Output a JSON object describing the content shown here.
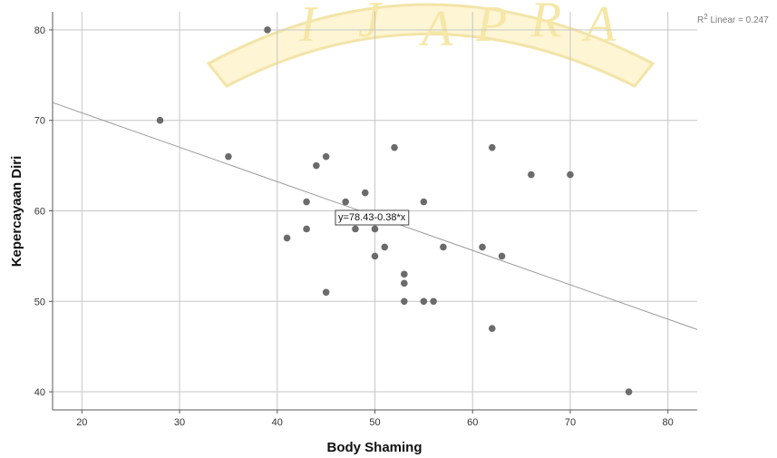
{
  "chart_data": {
    "type": "scatter",
    "xlabel": "Body Shaming",
    "ylabel": "Kepercayaan Diri",
    "xlim": [
      17,
      83
    ],
    "ylim": [
      38,
      82
    ],
    "xticks": [
      20,
      30,
      40,
      50,
      60,
      70,
      80
    ],
    "yticks": [
      40,
      50,
      60,
      70,
      80
    ],
    "grid": true,
    "points": [
      {
        "x": 28,
        "y": 70
      },
      {
        "x": 35,
        "y": 66
      },
      {
        "x": 39,
        "y": 80
      },
      {
        "x": 41,
        "y": 57
      },
      {
        "x": 43,
        "y": 61
      },
      {
        "x": 43,
        "y": 58
      },
      {
        "x": 44,
        "y": 65
      },
      {
        "x": 45,
        "y": 66
      },
      {
        "x": 45,
        "y": 51
      },
      {
        "x": 47,
        "y": 61
      },
      {
        "x": 48,
        "y": 58
      },
      {
        "x": 49,
        "y": 62
      },
      {
        "x": 50,
        "y": 58
      },
      {
        "x": 50,
        "y": 55
      },
      {
        "x": 51,
        "y": 56
      },
      {
        "x": 52,
        "y": 67
      },
      {
        "x": 53,
        "y": 53
      },
      {
        "x": 53,
        "y": 52
      },
      {
        "x": 53,
        "y": 50
      },
      {
        "x": 55,
        "y": 61
      },
      {
        "x": 55,
        "y": 50
      },
      {
        "x": 56,
        "y": 50
      },
      {
        "x": 57,
        "y": 56
      },
      {
        "x": 61,
        "y": 56
      },
      {
        "x": 62,
        "y": 67
      },
      {
        "x": 62,
        "y": 47
      },
      {
        "x": 63,
        "y": 55
      },
      {
        "x": 66,
        "y": 64
      },
      {
        "x": 70,
        "y": 64
      },
      {
        "x": 76,
        "y": 40
      }
    ],
    "fit_line": {
      "intercept": 78.43,
      "slope": -0.38
    },
    "equation_label": "y=78.43-0.38*x",
    "r2_label_prefix": "R",
    "r2_label_sup": "2",
    "r2_label_suffix": " Linear = 0.247",
    "colors": {
      "points": "#6b6b6b",
      "fit_line": "#9a9a9a",
      "grid": "#c6c6c6",
      "axis": "#5a5a5a"
    }
  },
  "watermark": {
    "letters": [
      "I",
      "J",
      "A",
      "P",
      "R",
      "A"
    ]
  }
}
